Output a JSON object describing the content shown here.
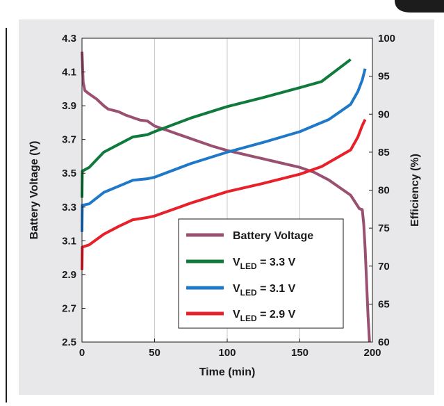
{
  "colors": {
    "header_bar": "#1c1c1c",
    "panel": "#e8e8ea",
    "plot_background": "#ffffff",
    "battery_voltage": "#9a5070",
    "vled_3_3": "#0f7a3c",
    "vled_3_1": "#1f78c8",
    "vled_2_9": "#e8202a"
  },
  "chart_data": {
    "type": "line",
    "xlabel": "Time (min)",
    "ylabel_left": "Battery Voltage (V)",
    "ylabel_right": "Efficiency (%)",
    "xlim": [
      0,
      200
    ],
    "ylim_left": [
      2.5,
      4.3
    ],
    "ylim_right": [
      60,
      100
    ],
    "x_ticks": [
      "0",
      "50",
      "100",
      "150",
      "200"
    ],
    "y_left_ticks": [
      "2.5",
      "2.7",
      "2.9",
      "3.1",
      "3.3",
      "3.5",
      "3.7",
      "3.9",
      "4.1",
      "4.3"
    ],
    "y_right_ticks": [
      "60",
      "65",
      "70",
      "75",
      "80",
      "85",
      "90",
      "95",
      "100"
    ],
    "grid": "vertical lines at major x ticks",
    "legend_position": "bottom-right",
    "series": [
      {
        "name": "Battery Voltage",
        "legend_main": "Battery Voltage",
        "legend_sub": "",
        "legend_suffix": "",
        "axis": "left",
        "color": "#9a5070",
        "points": [
          [
            0,
            4.22
          ],
          [
            0.3,
            4.16
          ],
          [
            0.8,
            4.04
          ],
          [
            2,
            3.99
          ],
          [
            5,
            3.97
          ],
          [
            10,
            3.94
          ],
          [
            15,
            3.9
          ],
          [
            18,
            3.88
          ],
          [
            25,
            3.865
          ],
          [
            30,
            3.845
          ],
          [
            40,
            3.815
          ],
          [
            45,
            3.81
          ],
          [
            50,
            3.78
          ],
          [
            60,
            3.75
          ],
          [
            70,
            3.72
          ],
          [
            80,
            3.69
          ],
          [
            90,
            3.66
          ],
          [
            100,
            3.635
          ],
          [
            110,
            3.615
          ],
          [
            120,
            3.595
          ],
          [
            130,
            3.575
          ],
          [
            140,
            3.555
          ],
          [
            150,
            3.535
          ],
          [
            160,
            3.505
          ],
          [
            170,
            3.46
          ],
          [
            180,
            3.4
          ],
          [
            185,
            3.37
          ],
          [
            188,
            3.33
          ],
          [
            191,
            3.29
          ],
          [
            193,
            3.285
          ],
          [
            194,
            3.2
          ],
          [
            195,
            3.05
          ],
          [
            196,
            2.85
          ],
          [
            197,
            2.65
          ],
          [
            198,
            2.5
          ]
        ]
      },
      {
        "name": "VLED = 3.3 V",
        "legend_main": "V",
        "legend_sub": "LED",
        "legend_suffix": " = 3.3 V",
        "axis": "right",
        "color": "#0f7a3c",
        "points": [
          [
            0,
            79
          ],
          [
            0.2,
            82.5
          ],
          [
            5,
            83
          ],
          [
            15,
            85
          ],
          [
            25,
            86
          ],
          [
            35,
            87
          ],
          [
            45,
            87.3
          ],
          [
            50,
            87.7
          ],
          [
            75,
            89.5
          ],
          [
            100,
            91
          ],
          [
            125,
            92.2
          ],
          [
            150,
            93.5
          ],
          [
            165,
            94.3
          ],
          [
            185,
            97.2
          ]
        ]
      },
      {
        "name": "VLED = 3.1 V",
        "legend_main": "V",
        "legend_sub": "LED",
        "legend_suffix": " = 3.1 V",
        "axis": "right",
        "color": "#1f78c8",
        "points": [
          [
            0,
            74.5
          ],
          [
            0.2,
            78
          ],
          [
            5,
            78.2
          ],
          [
            15,
            79.7
          ],
          [
            25,
            80.5
          ],
          [
            35,
            81.3
          ],
          [
            45,
            81.5
          ],
          [
            50,
            81.7
          ],
          [
            75,
            83.5
          ],
          [
            100,
            85
          ],
          [
            125,
            86.3
          ],
          [
            150,
            87.7
          ],
          [
            170,
            89.3
          ],
          [
            185,
            91.3
          ],
          [
            190,
            93
          ],
          [
            193,
            94.5
          ],
          [
            195,
            96
          ]
        ]
      },
      {
        "name": "VLED = 2.9 V",
        "legend_main": "V",
        "legend_sub": "LED",
        "legend_suffix": " = 2.9 V",
        "axis": "right",
        "color": "#e8202a",
        "points": [
          [
            0,
            69.5
          ],
          [
            0.2,
            72.5
          ],
          [
            5,
            72.8
          ],
          [
            15,
            74.2
          ],
          [
            25,
            75.2
          ],
          [
            35,
            76.1
          ],
          [
            45,
            76.4
          ],
          [
            50,
            76.6
          ],
          [
            75,
            78.3
          ],
          [
            100,
            79.8
          ],
          [
            125,
            80.9
          ],
          [
            150,
            82.1
          ],
          [
            165,
            83.1
          ],
          [
            185,
            85.3
          ],
          [
            190,
            87
          ],
          [
            193,
            88.5
          ],
          [
            195,
            89.3
          ]
        ]
      }
    ]
  }
}
